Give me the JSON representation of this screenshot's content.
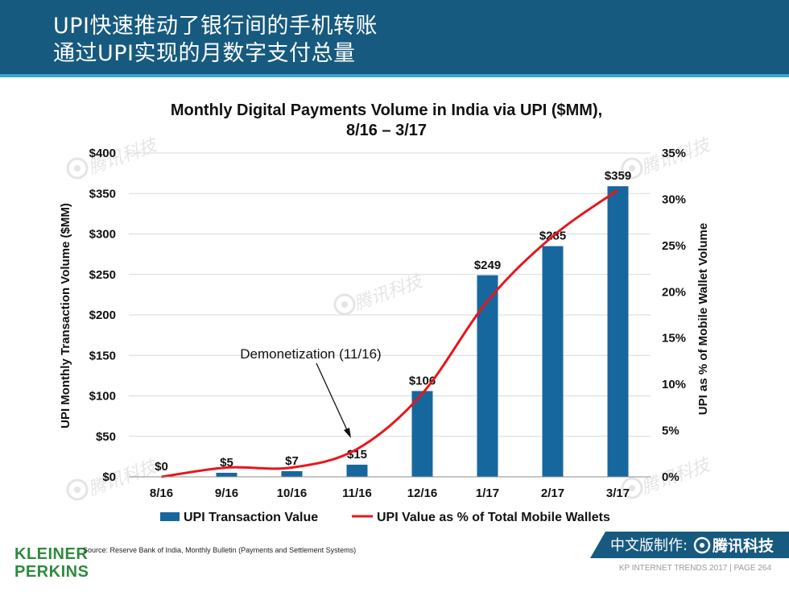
{
  "header": {
    "line1": "UPI快速推动了银行间的手机转账",
    "line2": "通过UPI实现的月数字支付总量"
  },
  "chart_data": {
    "type": "bar+line",
    "title_line1": "Monthly Digital Payments Volume in India via UPI ($MM),",
    "title_line2": "8/16 – 3/17",
    "categories": [
      "8/16",
      "9/16",
      "10/16",
      "11/16",
      "12/16",
      "1/17",
      "2/17",
      "3/17"
    ],
    "bar_series": {
      "name": "UPI Transaction Value",
      "values": [
        0,
        5,
        7,
        15,
        106,
        249,
        285,
        359
      ],
      "labels": [
        "$0",
        "$5",
        "$7",
        "$15",
        "$106",
        "$249",
        "$285",
        "$359"
      ],
      "color": "#17679f"
    },
    "line_series": {
      "name": "UPI Value as % of Total Mobile Wallets",
      "values": [
        0,
        1,
        1,
        3,
        9,
        19,
        26,
        31
      ],
      "color": "#e8161b"
    },
    "ylabel_left": "UPI Monthly Transaction Volume ($MM)",
    "ylabel_right": "UPI as % of Mobile Wallet Volume",
    "ylim_left": [
      0,
      400
    ],
    "ylim_right": [
      0,
      35
    ],
    "yticks_left": [
      "$0",
      "$50",
      "$100",
      "$150",
      "$200",
      "$250",
      "$300",
      "$350",
      "$400"
    ],
    "yticks_right": [
      "0%",
      "5%",
      "10%",
      "15%",
      "20%",
      "25%",
      "30%",
      "35%"
    ],
    "annotation": "Demonetization (11/16)",
    "grid": true,
    "legend_position": "bottom"
  },
  "watermark": "腾讯科技",
  "source": "Source: Reserve Bank of India, Monthly Bulletin (Payments and Settlement Systems)",
  "logo": {
    "line1": "KLEINER",
    "line2": "PERKINS"
  },
  "badge": {
    "prefix": "中文版制作:",
    "brand": "腾讯科技"
  },
  "footer": "KP INTERNET TRENDS 2017  |  PAGE 264"
}
